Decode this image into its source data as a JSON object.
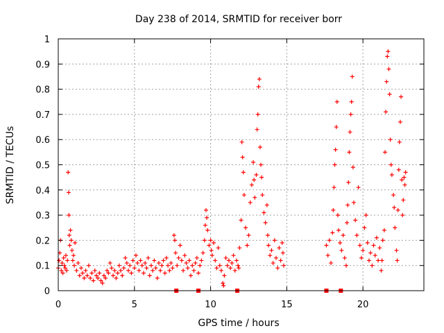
{
  "chart_data": {
    "type": "scatter",
    "title": "Day 238 of 2014, SRMTID for receiver borr",
    "xlabel": "GPS time / hours",
    "ylabel": "SRMTID / TECUs",
    "xlim": [
      0,
      24
    ],
    "ylim": [
      0,
      1
    ],
    "xticks": [
      0,
      5,
      10,
      15,
      20
    ],
    "xtick_labels": [
      "0",
      "5",
      "10",
      "15",
      "20"
    ],
    "yticks": [
      0,
      0.1,
      0.2,
      0.3,
      0.4,
      0.5,
      0.6,
      0.7,
      0.8,
      0.9,
      1
    ],
    "ytick_labels": [
      "0",
      "0.1",
      "0.2",
      "0.3",
      "0.4",
      "0.5",
      "0.6",
      "0.7",
      "0.8",
      "0.9",
      "1"
    ],
    "grid": true,
    "marker": "+",
    "series": [
      {
        "name": "SRMTID",
        "color": "#ff0000",
        "points": [
          [
            0.0,
            0.09
          ],
          [
            0.05,
            0.12
          ],
          [
            0.1,
            0.15
          ],
          [
            0.15,
            0.2
          ],
          [
            0.2,
            0.08
          ],
          [
            0.25,
            0.11
          ],
          [
            0.3,
            0.07
          ],
          [
            0.35,
            0.13
          ],
          [
            0.4,
            0.1
          ],
          [
            0.45,
            0.09
          ],
          [
            0.5,
            0.14
          ],
          [
            0.55,
            0.08
          ],
          [
            0.6,
            0.12
          ],
          [
            0.65,
            0.47
          ],
          [
            0.68,
            0.39
          ],
          [
            0.7,
            0.3
          ],
          [
            0.72,
            0.22
          ],
          [
            0.75,
            0.18
          ],
          [
            0.8,
            0.24
          ],
          [
            0.85,
            0.2
          ],
          [
            0.9,
            0.16
          ],
          [
            0.95,
            0.12
          ],
          [
            1.0,
            0.14
          ],
          [
            1.05,
            0.1
          ],
          [
            1.1,
            0.19
          ],
          [
            1.2,
            0.08
          ],
          [
            1.3,
            0.11
          ],
          [
            1.4,
            0.06
          ],
          [
            1.5,
            0.09
          ],
          [
            1.6,
            0.07
          ],
          [
            1.7,
            0.05
          ],
          [
            1.8,
            0.08
          ],
          [
            1.9,
            0.06
          ],
          [
            2.0,
            0.1
          ],
          [
            2.1,
            0.05
          ],
          [
            2.2,
            0.07
          ],
          [
            2.3,
            0.04
          ],
          [
            2.4,
            0.08
          ],
          [
            2.5,
            0.06
          ],
          [
            2.6,
            0.05
          ],
          [
            2.7,
            0.07
          ],
          [
            2.8,
            0.04
          ],
          [
            2.9,
            0.03
          ],
          [
            3.0,
            0.06
          ],
          [
            3.1,
            0.05
          ],
          [
            3.2,
            0.08
          ],
          [
            3.3,
            0.07
          ],
          [
            3.4,
            0.11
          ],
          [
            3.5,
            0.09
          ],
          [
            3.6,
            0.06
          ],
          [
            3.7,
            0.08
          ],
          [
            3.8,
            0.05
          ],
          [
            3.9,
            0.07
          ],
          [
            4.0,
            0.1
          ],
          [
            4.1,
            0.08
          ],
          [
            4.2,
            0.06
          ],
          [
            4.3,
            0.09
          ],
          [
            4.4,
            0.13
          ],
          [
            4.5,
            0.11
          ],
          [
            4.6,
            0.08
          ],
          [
            4.7,
            0.1
          ],
          [
            4.8,
            0.07
          ],
          [
            4.9,
            0.12
          ],
          [
            5.0,
            0.09
          ],
          [
            5.1,
            0.14
          ],
          [
            5.2,
            0.11
          ],
          [
            5.3,
            0.08
          ],
          [
            5.4,
            0.12
          ],
          [
            5.5,
            0.1
          ],
          [
            5.6,
            0.07
          ],
          [
            5.7,
            0.11
          ],
          [
            5.8,
            0.09
          ],
          [
            5.9,
            0.13
          ],
          [
            6.0,
            0.06
          ],
          [
            6.1,
            0.1
          ],
          [
            6.2,
            0.08
          ],
          [
            6.3,
            0.12
          ],
          [
            6.4,
            0.09
          ],
          [
            6.5,
            0.05
          ],
          [
            6.6,
            0.11
          ],
          [
            6.7,
            0.08
          ],
          [
            6.8,
            0.1
          ],
          [
            6.9,
            0.12
          ],
          [
            7.0,
            0.07
          ],
          [
            7.1,
            0.13
          ],
          [
            7.2,
            0.1
          ],
          [
            7.3,
            0.08
          ],
          [
            7.4,
            0.11
          ],
          [
            7.5,
            0.09
          ],
          [
            7.6,
            0.22
          ],
          [
            7.65,
            0.2
          ],
          [
            7.7,
            0.15
          ],
          [
            7.8,
            0.1
          ],
          [
            7.9,
            0.13
          ],
          [
            8.0,
            0.18
          ],
          [
            8.1,
            0.12
          ],
          [
            8.2,
            0.08
          ],
          [
            8.3,
            0.14
          ],
          [
            8.4,
            0.11
          ],
          [
            8.5,
            0.09
          ],
          [
            8.6,
            0.12
          ],
          [
            8.7,
            0.06
          ],
          [
            8.8,
            0.1
          ],
          [
            8.9,
            0.08
          ],
          [
            9.0,
            0.11
          ],
          [
            9.1,
            0.13
          ],
          [
            9.2,
            0.07
          ],
          [
            9.3,
            0.1
          ],
          [
            9.4,
            0.12
          ],
          [
            9.5,
            0.15
          ],
          [
            9.6,
            0.2
          ],
          [
            9.65,
            0.26
          ],
          [
            9.7,
            0.32
          ],
          [
            9.75,
            0.29
          ],
          [
            9.8,
            0.24
          ],
          [
            9.9,
            0.18
          ],
          [
            10.0,
            0.2
          ],
          [
            10.05,
            0.16
          ],
          [
            10.1,
            0.14
          ],
          [
            10.2,
            0.19
          ],
          [
            10.3,
            0.12
          ],
          [
            10.4,
            0.09
          ],
          [
            10.5,
            0.17
          ],
          [
            10.6,
            0.1
          ],
          [
            10.7,
            0.08
          ],
          [
            10.8,
            0.03
          ],
          [
            10.85,
            0.02
          ],
          [
            10.9,
            0.06
          ],
          [
            11.0,
            0.13
          ],
          [
            11.1,
            0.1
          ],
          [
            11.2,
            0.12
          ],
          [
            11.3,
            0.09
          ],
          [
            11.4,
            0.11
          ],
          [
            11.5,
            0.14
          ],
          [
            11.6,
            0.08
          ],
          [
            11.7,
            0.12
          ],
          [
            11.8,
            0.1
          ],
          [
            11.85,
            0.09
          ],
          [
            11.9,
            0.17
          ],
          [
            12.0,
            0.28
          ],
          [
            12.05,
            0.59
          ],
          [
            12.1,
            0.53
          ],
          [
            12.15,
            0.47
          ],
          [
            12.2,
            0.38
          ],
          [
            12.3,
            0.25
          ],
          [
            12.4,
            0.18
          ],
          [
            12.5,
            0.22
          ],
          [
            12.6,
            0.35
          ],
          [
            12.7,
            0.42
          ],
          [
            12.8,
            0.51
          ],
          [
            12.85,
            0.44
          ],
          [
            12.9,
            0.37
          ],
          [
            13.0,
            0.46
          ],
          [
            13.05,
            0.64
          ],
          [
            13.1,
            0.7
          ],
          [
            13.15,
            0.81
          ],
          [
            13.2,
            0.84
          ],
          [
            13.25,
            0.57
          ],
          [
            13.3,
            0.5
          ],
          [
            13.35,
            0.45
          ],
          [
            13.4,
            0.38
          ],
          [
            13.5,
            0.31
          ],
          [
            13.6,
            0.27
          ],
          [
            13.7,
            0.34
          ],
          [
            13.75,
            0.22
          ],
          [
            13.8,
            0.18
          ],
          [
            13.9,
            0.14
          ],
          [
            14.0,
            0.16
          ],
          [
            14.1,
            0.11
          ],
          [
            14.2,
            0.2
          ],
          [
            14.3,
            0.13
          ],
          [
            14.4,
            0.09
          ],
          [
            14.5,
            0.17
          ],
          [
            14.6,
            0.12
          ],
          [
            14.7,
            0.19
          ],
          [
            14.75,
            0.15
          ],
          [
            14.8,
            0.1
          ],
          [
            17.6,
            0.18
          ],
          [
            17.7,
            0.14
          ],
          [
            17.8,
            0.2
          ],
          [
            17.9,
            0.11
          ],
          [
            18.0,
            0.23
          ],
          [
            18.05,
            0.32
          ],
          [
            18.1,
            0.41
          ],
          [
            18.15,
            0.5
          ],
          [
            18.2,
            0.56
          ],
          [
            18.25,
            0.65
          ],
          [
            18.3,
            0.75
          ],
          [
            18.35,
            0.3
          ],
          [
            18.4,
            0.24
          ],
          [
            18.5,
            0.19
          ],
          [
            18.6,
            0.16
          ],
          [
            18.7,
            0.22
          ],
          [
            18.8,
            0.13
          ],
          [
            18.9,
            0.1
          ],
          [
            18.95,
            0.27
          ],
          [
            19.0,
            0.34
          ],
          [
            19.05,
            0.43
          ],
          [
            19.1,
            0.55
          ],
          [
            19.15,
            0.63
          ],
          [
            19.2,
            0.7
          ],
          [
            19.25,
            0.75
          ],
          [
            19.3,
            0.85
          ],
          [
            19.35,
            0.49
          ],
          [
            19.4,
            0.35
          ],
          [
            19.5,
            0.28
          ],
          [
            19.6,
            0.22
          ],
          [
            19.7,
            0.41
          ],
          [
            19.8,
            0.18
          ],
          [
            19.9,
            0.13
          ],
          [
            20.0,
            0.16
          ],
          [
            20.1,
            0.25
          ],
          [
            20.2,
            0.3
          ],
          [
            20.3,
            0.19
          ],
          [
            20.4,
            0.12
          ],
          [
            20.5,
            0.15
          ],
          [
            20.6,
            0.1
          ],
          [
            20.7,
            0.18
          ],
          [
            20.8,
            0.14
          ],
          [
            20.9,
            0.21
          ],
          [
            21.0,
            0.12
          ],
          [
            21.1,
            0.17
          ],
          [
            21.2,
            0.08
          ],
          [
            21.25,
            0.12
          ],
          [
            21.3,
            0.2
          ],
          [
            21.4,
            0.24
          ],
          [
            21.45,
            0.55
          ],
          [
            21.5,
            0.71
          ],
          [
            21.55,
            0.83
          ],
          [
            21.6,
            0.93
          ],
          [
            21.65,
            0.95
          ],
          [
            21.7,
            0.88
          ],
          [
            21.75,
            0.78
          ],
          [
            21.8,
            0.6
          ],
          [
            21.85,
            0.5
          ],
          [
            21.9,
            0.46
          ],
          [
            22.0,
            0.38
          ],
          [
            22.05,
            0.33
          ],
          [
            22.1,
            0.25
          ],
          [
            22.2,
            0.16
          ],
          [
            22.25,
            0.12
          ],
          [
            22.3,
            0.32
          ],
          [
            22.35,
            0.48
          ],
          [
            22.4,
            0.59
          ],
          [
            22.45,
            0.67
          ],
          [
            22.5,
            0.77
          ],
          [
            22.55,
            0.44
          ],
          [
            22.6,
            0.3
          ],
          [
            22.65,
            0.36
          ],
          [
            22.7,
            0.45
          ],
          [
            22.75,
            0.42
          ],
          [
            22.8,
            0.47
          ]
        ]
      }
    ],
    "axis_markers": [
      7.75,
      9.2,
      11.75,
      17.6,
      18.55
    ]
  }
}
